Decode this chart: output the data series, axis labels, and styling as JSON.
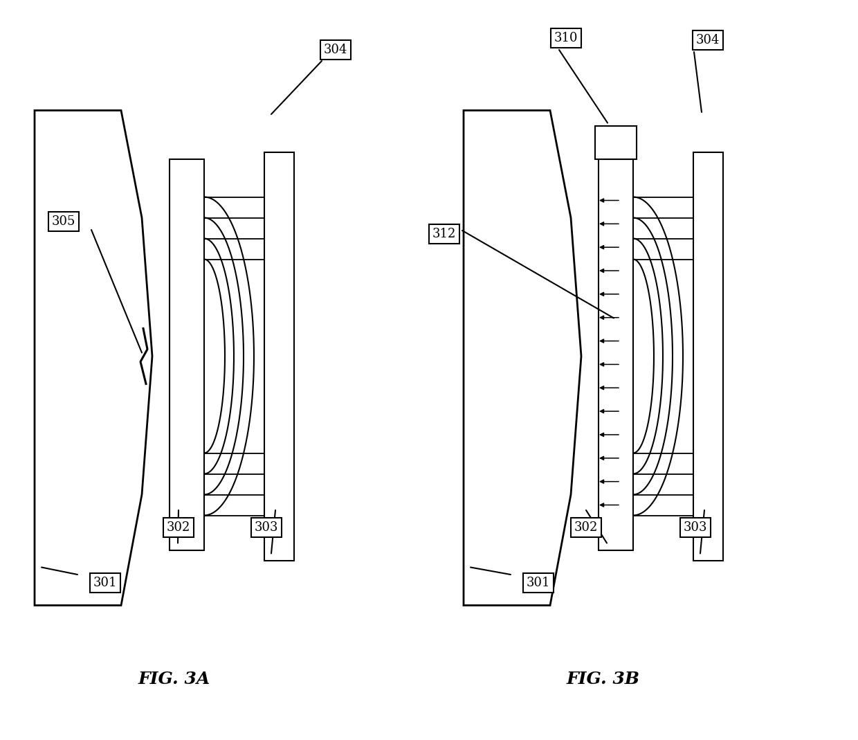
{
  "bg_color": "#ffffff",
  "line_color": "#000000",
  "fig_width": 12.4,
  "fig_height": 10.69,
  "fig3a_label": "FIG. 3A",
  "fig3b_label": "FIG. 3B",
  "labels": {
    "301": "301",
    "302": "302",
    "303": "303",
    "304": "304",
    "305": "305",
    "310": "310",
    "312": "312"
  }
}
